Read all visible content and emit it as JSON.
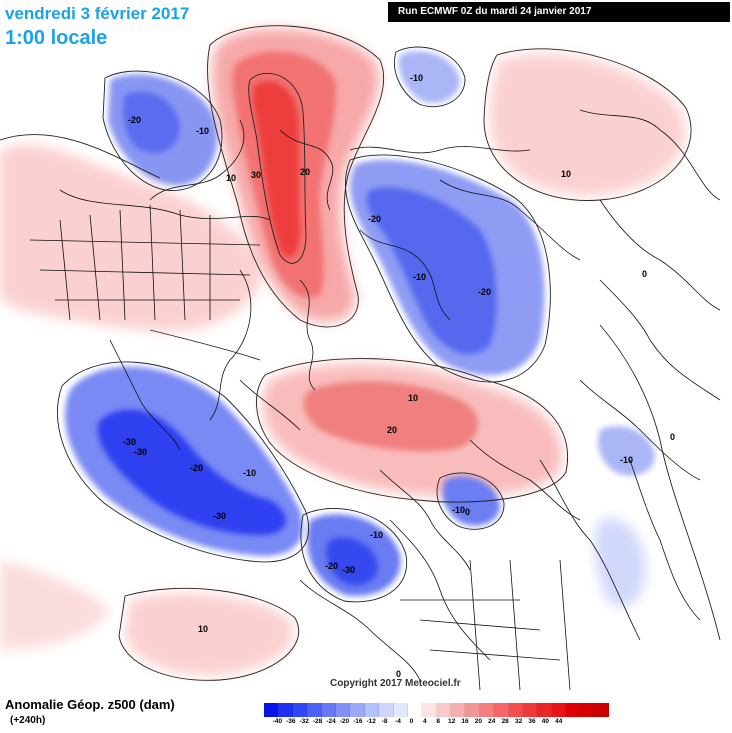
{
  "header": {
    "date": "vendredi 3 février 2017",
    "time": "1:00 locale",
    "run": "Run ECMWF 0Z du mardi 24 janvier 2017"
  },
  "footer": {
    "title": "Anomalie Géop. z500 (dam)",
    "lead": "(+240h)",
    "copyright": "Copyright 2017 Meteociel.fr"
  },
  "legend": {
    "colors": [
      "#0a14e6",
      "#1e32f0",
      "#3246f5",
      "#4b60f5",
      "#6678f5",
      "#8090f7",
      "#9aa8f7",
      "#b4c0fa",
      "#cdd5fa",
      "#e4e8fc",
      "#ffffff",
      "#fce4e4",
      "#fac8c8",
      "#f7aeae",
      "#f59696",
      "#f57e7e",
      "#f56666",
      "#f54e4e",
      "#f03a3a",
      "#eb2626",
      "#e61414",
      "#e00000",
      "#d60000",
      "#cc0000"
    ],
    "ticks": [
      "-40",
      "-36",
      "-32",
      "-28",
      "-24",
      "-20",
      "-16",
      "-12",
      "-8",
      "-4",
      "0",
      "4",
      "8",
      "12",
      "16",
      "20",
      "24",
      "28",
      "32",
      "36",
      "40",
      "44"
    ]
  },
  "map": {
    "contour_labels": [
      "-20",
      "-10",
      "30",
      "20",
      "-10",
      "10",
      "-20",
      "-10",
      "-20",
      "0",
      "10",
      "20",
      "-10",
      "0",
      "0",
      "-10",
      "-30",
      "-30",
      "-20",
      "-10",
      "-30",
      "-20",
      "-30",
      "-10",
      "10",
      "0",
      "10"
    ]
  }
}
